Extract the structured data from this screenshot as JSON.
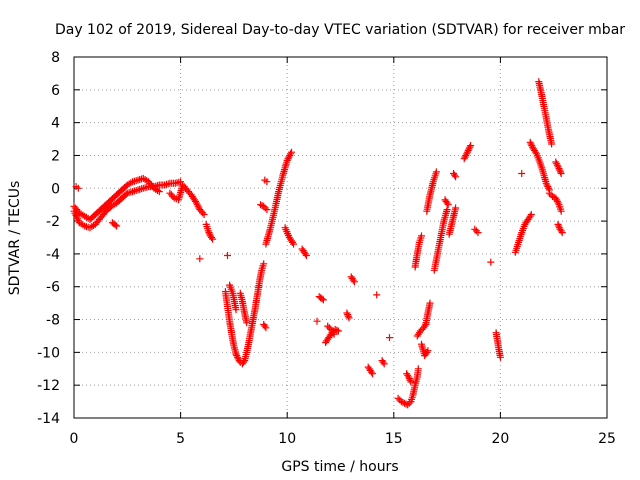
{
  "chart_data": {
    "type": "scatter",
    "title": "Day 102 of 2019, Sidereal Day-to-day VTEC variation (SDTVAR) for receiver mbar",
    "xlabel": "GPS time / hours",
    "ylabel": "SDTVAR / TECUs",
    "xlim": [
      0,
      25
    ],
    "ylim": [
      -14,
      8
    ],
    "xticks": [
      0,
      5,
      10,
      15,
      20,
      25
    ],
    "yticks": [
      -14,
      -12,
      -10,
      -8,
      -6,
      -4,
      -2,
      0,
      2,
      4,
      6,
      8
    ],
    "xtick_labels": [
      "0",
      "5",
      "10",
      "15",
      "20",
      "25"
    ],
    "ytick_labels": [
      "-14",
      "-12",
      "-10",
      "-8",
      "-6",
      "-4",
      "-2",
      "0",
      "2",
      "4",
      "6",
      "8"
    ],
    "grid": true,
    "grid_style": "dotted",
    "marker": "+",
    "color": "#ff0000",
    "segments": [
      {
        "x": [
          0.0,
          0.25,
          0.5,
          0.75,
          1.0,
          1.25,
          1.5,
          1.75,
          2.0,
          2.25,
          2.5,
          2.75,
          3.0,
          3.25,
          3.5,
          3.75,
          4.0,
          4.25,
          4.5,
          4.75,
          5.0
        ],
        "y": [
          -1.4,
          -2.1,
          -2.3,
          -2.4,
          -2.2,
          -1.8,
          -1.4,
          -1.1,
          -0.9,
          -0.6,
          -0.3,
          -0.2,
          -0.1,
          0.0,
          0.1,
          0.1,
          0.2,
          0.2,
          0.3,
          0.3,
          0.4
        ]
      },
      {
        "x": [
          0.0,
          0.25,
          0.5,
          0.75,
          1.0,
          1.25,
          1.5,
          1.75,
          2.0,
          2.25,
          2.5,
          2.75,
          3.0,
          3.25,
          3.5,
          3.75,
          4.0
        ],
        "y": [
          -1.1,
          -1.5,
          -1.7,
          -1.9,
          -1.6,
          -1.3,
          -1.0,
          -0.7,
          -0.4,
          -0.1,
          0.2,
          0.4,
          0.5,
          0.6,
          0.4,
          0.0,
          -0.2
        ]
      },
      {
        "x": [
          0.1,
          0.2
        ],
        "y": [
          0.1,
          0.0
        ]
      },
      {
        "x": [
          1.8,
          2.0
        ],
        "y": [
          -2.1,
          -2.3
        ]
      },
      {
        "x": [
          4.5,
          4.7,
          4.9,
          5.1,
          5.3,
          5.5,
          5.7,
          5.9,
          6.1
        ],
        "y": [
          -0.3,
          -0.6,
          -0.7,
          0.2,
          -0.1,
          -0.4,
          -0.8,
          -1.3,
          -1.6
        ]
      },
      {
        "x": [
          6.2,
          6.3,
          6.4,
          6.5
        ],
        "y": [
          -2.2,
          -2.6,
          -2.9,
          -3.1
        ]
      },
      {
        "x": [
          5.9
        ],
        "y": [
          -4.3
        ]
      },
      {
        "x": [
          7.1,
          7.2,
          7.3,
          7.4,
          7.5,
          7.6,
          7.7,
          7.8,
          7.9,
          8.0,
          8.1,
          8.2,
          8.3,
          8.4,
          8.5,
          8.6,
          8.7,
          8.8,
          8.9
        ],
        "y": [
          -6.3,
          -7.2,
          -8.1,
          -8.9,
          -9.6,
          -10.1,
          -10.4,
          -10.6,
          -10.7,
          -10.5,
          -10.0,
          -9.4,
          -8.7,
          -8.0,
          -7.3,
          -6.5,
          -5.7,
          -5.0,
          -4.6
        ]
      },
      {
        "x": [
          7.3,
          7.45,
          7.6
        ],
        "y": [
          -5.9,
          -6.4,
          -7.4
        ]
      },
      {
        "x": [
          7.8,
          7.9,
          8.0,
          8.1
        ],
        "y": [
          -6.4,
          -6.9,
          -7.6,
          -8.2
        ]
      },
      {
        "x": [
          7.2
        ],
        "y": [
          -4.1
        ]
      },
      {
        "x": [
          7.6
        ],
        "y": [
          -10.1
        ]
      },
      {
        "x": [
          8.9,
          9.0
        ],
        "y": [
          -8.3,
          -8.5
        ]
      },
      {
        "x": [
          8.95,
          9.05
        ],
        "y": [
          0.5,
          0.4
        ]
      },
      {
        "x": [
          9.0,
          9.2,
          9.4,
          9.6,
          9.8,
          10.0,
          10.2
        ],
        "y": [
          -3.4,
          -2.5,
          -1.4,
          -0.2,
          0.8,
          1.7,
          2.2
        ]
      },
      {
        "x": [
          8.75,
          8.9,
          9.05
        ],
        "y": [
          -1.0,
          -1.1,
          -1.3
        ]
      },
      {
        "x": [
          9.9,
          10.1,
          10.3
        ],
        "y": [
          -2.4,
          -3.0,
          -3.4
        ]
      },
      {
        "x": [
          10.7,
          10.8,
          10.9
        ],
        "y": [
          -3.7,
          -3.9,
          -4.1
        ]
      },
      {
        "x": [
          11.5,
          11.7
        ],
        "y": [
          -6.6,
          -6.8
        ]
      },
      {
        "x": [
          11.4
        ],
        "y": [
          -8.1
        ]
      },
      {
        "x": [
          11.8,
          11.95,
          12.1,
          12.25,
          12.4
        ],
        "y": [
          -9.4,
          -9.1,
          -8.8,
          -8.6,
          -8.7
        ]
      },
      {
        "x": [
          11.9,
          12.05,
          12.2
        ],
        "y": [
          -8.4,
          -8.6,
          -8.9
        ]
      },
      {
        "x": [
          12.8,
          12.9
        ],
        "y": [
          -7.6,
          -7.9
        ]
      },
      {
        "x": [
          13.0,
          13.15
        ],
        "y": [
          -5.4,
          -5.7
        ]
      },
      {
        "x": [
          13.8,
          13.9,
          14.0
        ],
        "y": [
          -10.9,
          -11.1,
          -11.3
        ]
      },
      {
        "x": [
          14.2
        ],
        "y": [
          -6.5
        ]
      },
      {
        "x": [
          14.45,
          14.55
        ],
        "y": [
          -10.5,
          -10.7
        ]
      },
      {
        "x": [
          14.8
        ],
        "y": [
          -9.1
        ]
      },
      {
        "x": [
          15.2,
          15.35,
          15.5,
          15.65,
          15.8,
          15.9,
          16.0,
          16.1,
          16.15
        ],
        "y": [
          -12.8,
          -13.0,
          -13.1,
          -13.2,
          -13.0,
          -12.6,
          -12.0,
          -11.5,
          -11.0
        ]
      },
      {
        "x": [
          15.6,
          15.7,
          15.8
        ],
        "y": [
          -11.3,
          -11.5,
          -11.8
        ]
      },
      {
        "x": [
          16.0,
          16.1,
          16.2,
          16.3
        ],
        "y": [
          -4.8,
          -4.0,
          -3.3,
          -2.9
        ]
      },
      {
        "x": [
          16.1,
          16.25,
          16.4,
          16.5
        ],
        "y": [
          -9.0,
          -8.7,
          -8.5,
          -8.3
        ]
      },
      {
        "x": [
          16.5,
          16.6,
          16.7
        ],
        "y": [
          -8.3,
          -7.6,
          -7.0
        ]
      },
      {
        "x": [
          16.3,
          16.45,
          16.6
        ],
        "y": [
          -9.5,
          -10.2,
          -9.9
        ]
      },
      {
        "x": [
          16.55,
          16.7,
          16.85,
          17.0
        ],
        "y": [
          -1.4,
          -0.4,
          0.4,
          1.0
        ]
      },
      {
        "x": [
          16.9,
          17.05,
          17.2,
          17.35,
          17.5
        ],
        "y": [
          -5.0,
          -4.0,
          -3.0,
          -2.0,
          -1.3
        ]
      },
      {
        "x": [
          17.4,
          17.55
        ],
        "y": [
          -0.7,
          -1.0
        ]
      },
      {
        "x": [
          17.6,
          17.75,
          17.9
        ],
        "y": [
          -2.8,
          -2.0,
          -1.2
        ]
      },
      {
        "x": [
          17.8,
          17.9
        ],
        "y": [
          0.9,
          0.7
        ]
      },
      {
        "x": [
          18.3,
          18.45,
          18.6
        ],
        "y": [
          1.8,
          2.2,
          2.6
        ]
      },
      {
        "x": [
          18.8,
          18.95
        ],
        "y": [
          -2.5,
          -2.7
        ]
      },
      {
        "x": [
          19.55
        ],
        "y": [
          -4.5
        ]
      },
      {
        "x": [
          19.8,
          19.9,
          20.0
        ],
        "y": [
          -8.8,
          -9.6,
          -10.3
        ]
      },
      {
        "x": [
          20.7,
          20.85,
          21.0,
          21.15,
          21.3,
          21.45
        ],
        "y": [
          -3.9,
          -3.3,
          -2.7,
          -2.2,
          -1.9,
          -1.6
        ]
      },
      {
        "x": [
          21.0
        ],
        "y": [
          0.9
        ]
      },
      {
        "x": [
          21.4,
          21.55,
          21.7,
          21.85,
          22.0,
          22.15,
          22.3
        ],
        "y": [
          2.8,
          2.4,
          2.1,
          1.6,
          1.0,
          0.3,
          -0.1
        ]
      },
      {
        "x": [
          21.8,
          21.95,
          22.1,
          22.25,
          22.4
        ],
        "y": [
          6.5,
          5.6,
          4.6,
          3.6,
          2.7
        ]
      },
      {
        "x": [
          22.3,
          22.45,
          22.6,
          22.75,
          22.85
        ],
        "y": [
          -0.3,
          -0.5,
          -0.6,
          -1.0,
          -1.4
        ]
      },
      {
        "x": [
          22.6,
          22.75,
          22.85
        ],
        "y": [
          1.6,
          1.2,
          0.9
        ]
      },
      {
        "x": [
          22.7,
          22.8,
          22.9
        ],
        "y": [
          -2.2,
          -2.5,
          -2.7
        ]
      }
    ]
  }
}
